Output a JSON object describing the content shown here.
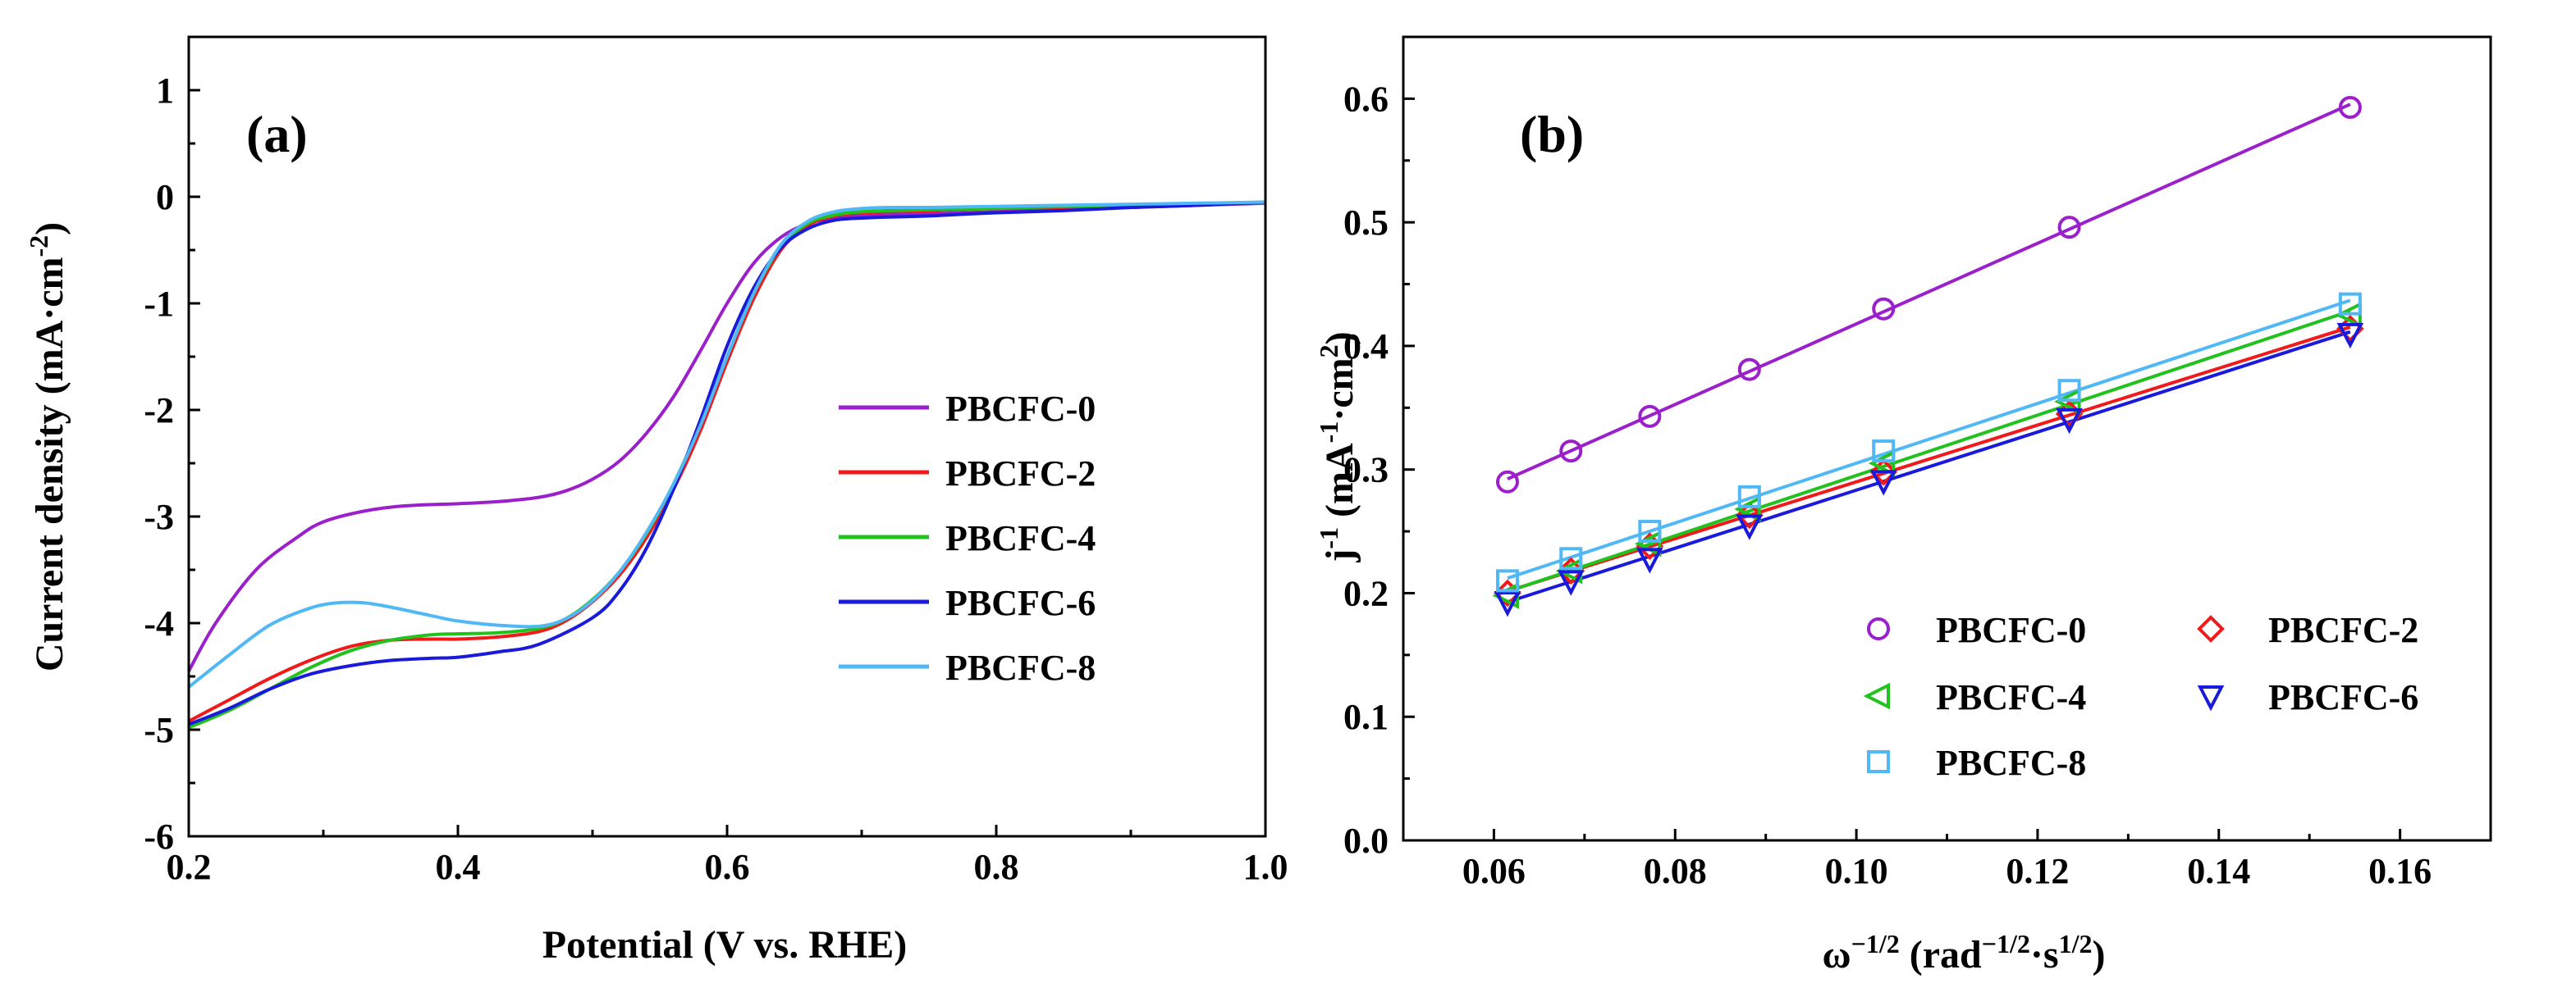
{
  "chart_data": [
    {
      "type": "line",
      "panel_label": "(a)",
      "xlabel": "Potential (V vs. RHE)",
      "ylabel_main": "Current density (mA·cm",
      "ylabel_sup": "-2",
      "ylabel_end": ")",
      "xlim": [
        0.2,
        1.0
      ],
      "ylim": [
        -6,
        1.5
      ],
      "xticks": [
        0.2,
        0.4,
        0.6,
        0.8,
        1.0
      ],
      "xtick_labels": [
        "0.2",
        "0.4",
        "0.6",
        "0.8",
        "1.0"
      ],
      "yticks": [
        -6,
        -5,
        -4,
        -3,
        -2,
        -1,
        0,
        1
      ],
      "ytick_labels": [
        "-6",
        "-5",
        "-4",
        "-3",
        "-2",
        "-1",
        "0",
        "1"
      ],
      "grid": false,
      "legend_position": "right-center",
      "series": [
        {
          "name": "PBCFC-0",
          "color": "#9B1FCB",
          "x": [
            0.2,
            0.22,
            0.25,
            0.28,
            0.3,
            0.33,
            0.36,
            0.4,
            0.43,
            0.46,
            0.48,
            0.5,
            0.52,
            0.54,
            0.56,
            0.58,
            0.6,
            0.62,
            0.64,
            0.66,
            0.68,
            0.7,
            0.72,
            0.75,
            0.8,
            0.85,
            0.9,
            0.95,
            1.0
          ],
          "y": [
            -4.45,
            -4.0,
            -3.5,
            -3.2,
            -3.05,
            -2.95,
            -2.9,
            -2.88,
            -2.86,
            -2.82,
            -2.76,
            -2.65,
            -2.48,
            -2.22,
            -1.88,
            -1.45,
            -1.0,
            -0.62,
            -0.38,
            -0.25,
            -0.2,
            -0.18,
            -0.17,
            -0.16,
            -0.14,
            -0.12,
            -0.1,
            -0.08,
            -0.06
          ]
        },
        {
          "name": "PBCFC-2",
          "color": "#F01A1A",
          "x": [
            0.2,
            0.23,
            0.26,
            0.29,
            0.32,
            0.35,
            0.38,
            0.4,
            0.43,
            0.46,
            0.48,
            0.5,
            0.52,
            0.54,
            0.56,
            0.58,
            0.6,
            0.62,
            0.64,
            0.66,
            0.68,
            0.7,
            0.72,
            0.75,
            0.8,
            0.85,
            0.9,
            0.95,
            1.0
          ],
          "y": [
            -4.92,
            -4.72,
            -4.52,
            -4.35,
            -4.22,
            -4.16,
            -4.15,
            -4.15,
            -4.13,
            -4.08,
            -3.98,
            -3.8,
            -3.55,
            -3.2,
            -2.75,
            -2.2,
            -1.55,
            -0.95,
            -0.5,
            -0.27,
            -0.18,
            -0.15,
            -0.14,
            -0.13,
            -0.11,
            -0.1,
            -0.08,
            -0.07,
            -0.05
          ]
        },
        {
          "name": "PBCFC-4",
          "color": "#22C21E",
          "x": [
            0.2,
            0.23,
            0.26,
            0.29,
            0.32,
            0.35,
            0.38,
            0.4,
            0.43,
            0.46,
            0.48,
            0.5,
            0.52,
            0.54,
            0.56,
            0.58,
            0.6,
            0.62,
            0.64,
            0.66,
            0.68,
            0.7,
            0.72,
            0.75,
            0.8,
            0.85,
            0.9,
            0.95,
            1.0
          ],
          "y": [
            -4.98,
            -4.82,
            -4.62,
            -4.42,
            -4.26,
            -4.16,
            -4.11,
            -4.1,
            -4.09,
            -4.05,
            -3.96,
            -3.78,
            -3.52,
            -3.16,
            -2.7,
            -2.14,
            -1.5,
            -0.9,
            -0.47,
            -0.25,
            -0.17,
            -0.14,
            -0.13,
            -0.12,
            -0.11,
            -0.09,
            -0.08,
            -0.07,
            -0.05
          ]
        },
        {
          "name": "PBCFC-6",
          "color": "#1A1ADB",
          "x": [
            0.2,
            0.23,
            0.26,
            0.29,
            0.32,
            0.35,
            0.38,
            0.4,
            0.43,
            0.46,
            0.5,
            0.52,
            0.54,
            0.56,
            0.58,
            0.6,
            0.62,
            0.64,
            0.66,
            0.68,
            0.7,
            0.72,
            0.75,
            0.8,
            0.85,
            0.9,
            0.95,
            1.0
          ],
          "y": [
            -4.95,
            -4.8,
            -4.62,
            -4.48,
            -4.4,
            -4.35,
            -4.33,
            -4.32,
            -4.27,
            -4.2,
            -3.95,
            -3.7,
            -3.3,
            -2.75,
            -2.1,
            -1.4,
            -0.85,
            -0.48,
            -0.3,
            -0.22,
            -0.2,
            -0.19,
            -0.18,
            -0.15,
            -0.13,
            -0.1,
            -0.08,
            -0.05
          ]
        },
        {
          "name": "PBCFC-8",
          "color": "#4FB8F5",
          "x": [
            0.2,
            0.23,
            0.26,
            0.29,
            0.31,
            0.33,
            0.35,
            0.38,
            0.4,
            0.43,
            0.46,
            0.48,
            0.5,
            0.52,
            0.54,
            0.56,
            0.58,
            0.6,
            0.62,
            0.64,
            0.66,
            0.68,
            0.7,
            0.72,
            0.75,
            0.8,
            0.85,
            0.9,
            0.95,
            1.0
          ],
          "y": [
            -4.6,
            -4.3,
            -4.02,
            -3.86,
            -3.81,
            -3.81,
            -3.85,
            -3.93,
            -3.98,
            -4.02,
            -4.03,
            -3.96,
            -3.79,
            -3.52,
            -3.15,
            -2.7,
            -2.15,
            -1.5,
            -0.9,
            -0.45,
            -0.23,
            -0.14,
            -0.11,
            -0.1,
            -0.1,
            -0.09,
            -0.08,
            -0.07,
            -0.06,
            -0.05
          ]
        }
      ]
    },
    {
      "type": "scatter",
      "panel_label": "(b)",
      "xlabel_main": "ω",
      "xlabel_sup1": "−1/2",
      "xlabel_mid": " (rad",
      "xlabel_sup2": "−1/2",
      "xlabel_mid2": "·s",
      "xlabel_sup3": "1/2",
      "xlabel_end": ")",
      "ylabel_main": "j",
      "ylabel_sup1": "-1",
      "ylabel_mid": " (mA",
      "ylabel_sup2": "-1",
      "ylabel_mid2": "·cm",
      "ylabel_sup3": "2",
      "ylabel_end": ")",
      "xlim": [
        0.05,
        0.17
      ],
      "ylim": [
        0.0,
        0.65
      ],
      "xticks": [
        0.06,
        0.08,
        0.1,
        0.12,
        0.14,
        0.16
      ],
      "xtick_labels": [
        "0.06",
        "0.08",
        "0.10",
        "0.12",
        "0.14",
        "0.16"
      ],
      "yticks": [
        0.0,
        0.1,
        0.2,
        0.3,
        0.4,
        0.5,
        0.6
      ],
      "ytick_labels": [
        "0.0",
        "0.1",
        "0.2",
        "0.3",
        "0.4",
        "0.5",
        "0.6"
      ],
      "grid": false,
      "legend_position": "bottom-right",
      "fit_lines": true,
      "series": [
        {
          "name": "PBCFC-0",
          "color": "#9B1FCB",
          "marker": "circle",
          "x": [
            0.0615,
            0.0685,
            0.0772,
            0.0882,
            0.103,
            0.1235,
            0.1545
          ],
          "y": [
            0.29,
            0.315,
            0.343,
            0.381,
            0.43,
            0.496,
            0.593
          ]
        },
        {
          "name": "PBCFC-2",
          "color": "#F01A1A",
          "marker": "diamond",
          "x": [
            0.0615,
            0.0685,
            0.0772,
            0.0882,
            0.103,
            0.1235,
            0.1545
          ],
          "y": [
            0.2,
            0.218,
            0.238,
            0.263,
            0.298,
            0.345,
            0.414
          ]
        },
        {
          "name": "PBCFC-4",
          "color": "#22C21E",
          "marker": "triangle-left",
          "x": [
            0.0615,
            0.0685,
            0.0772,
            0.0882,
            0.103,
            0.1235,
            0.1545
          ],
          "y": [
            0.198,
            0.218,
            0.24,
            0.268,
            0.305,
            0.355,
            0.425
          ]
        },
        {
          "name": "PBCFC-6",
          "color": "#1A1ADB",
          "marker": "triangle-down",
          "x": [
            0.0615,
            0.0685,
            0.0772,
            0.0882,
            0.103,
            0.1235,
            0.1545
          ],
          "y": [
            0.193,
            0.21,
            0.228,
            0.255,
            0.291,
            0.341,
            0.41
          ]
        },
        {
          "name": "PBCFC-8",
          "color": "#4FB8F5",
          "marker": "square",
          "x": [
            0.0615,
            0.0685,
            0.0772,
            0.0882,
            0.103,
            0.1235,
            0.1545
          ],
          "y": [
            0.21,
            0.228,
            0.25,
            0.278,
            0.315,
            0.364,
            0.434
          ]
        }
      ]
    }
  ]
}
